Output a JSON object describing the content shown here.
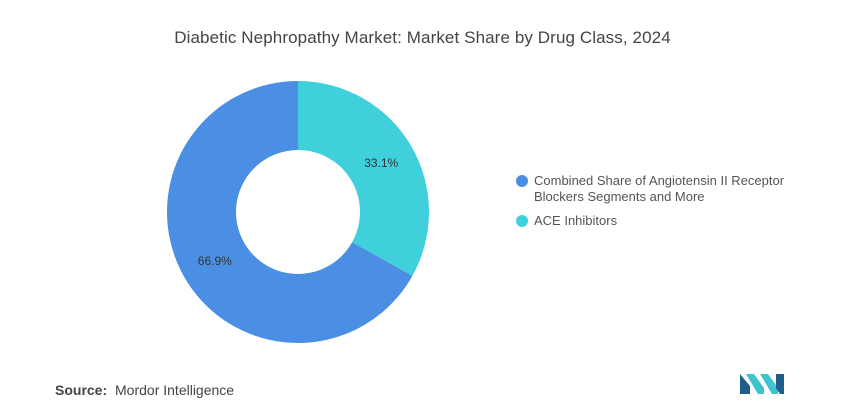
{
  "title": "Diabetic Nephropathy Market: Market Share by Drug Class, 2024",
  "chart_data": {
    "type": "pie",
    "variant": "donut",
    "slices": [
      {
        "label": "Combined Share of Angiotensin II Receptor Blockers Segments and More",
        "value": 66.9,
        "value_label": "66.9%",
        "color": "#4a8fe3"
      },
      {
        "label": "ACE Inhibitors",
        "value": 33.1,
        "value_label": "33.1%",
        "color": "#40d0dc"
      }
    ],
    "legend_position": "right"
  },
  "source": {
    "label": "Source:",
    "text": "Mordor Intelligence"
  },
  "logo": {
    "icon": "mordor-intelligence-logo-icon",
    "colors": [
      "#1f5d8a",
      "#3ec3cf"
    ]
  }
}
